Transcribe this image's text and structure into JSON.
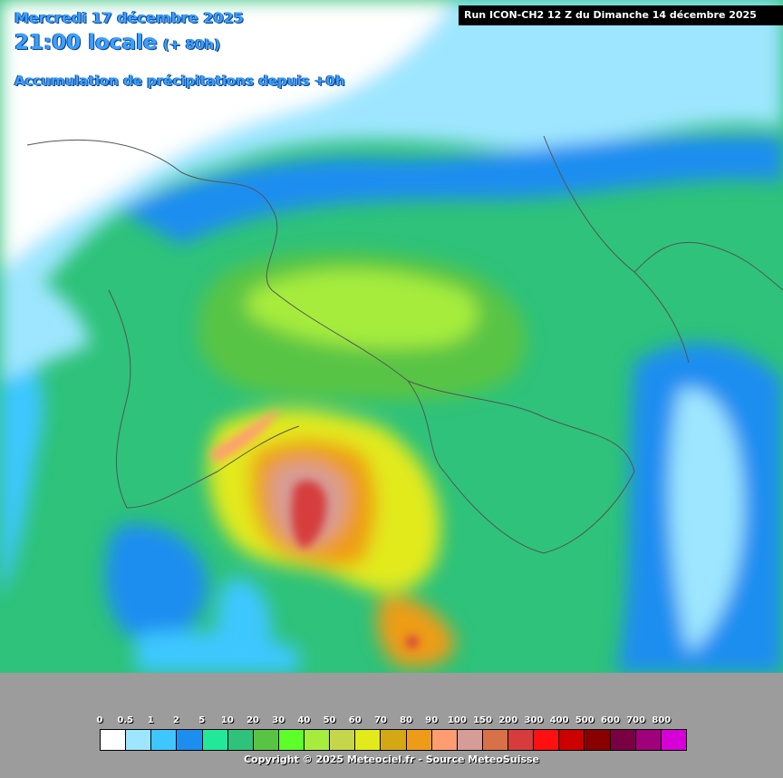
{
  "header": {
    "date": "Mercredi 17 décembre 2025",
    "time": "21:00 locale",
    "offset": "(+ 80h)",
    "subtitle": "Accumulation de précipitations depuis +0h"
  },
  "run_banner": "Run ICON-CH2 12 Z du Dimanche 14 décembre 2025",
  "legend": {
    "ticks": [
      "0",
      "0.5",
      "1",
      "2",
      "5",
      "10",
      "20",
      "30",
      "40",
      "50",
      "60",
      "70",
      "80",
      "90",
      "100",
      "150",
      "200",
      "300",
      "400",
      "500",
      "600",
      "700",
      "800"
    ],
    "colors": [
      "#ffffff",
      "#9ee6ff",
      "#3ec7ff",
      "#1c8ef0",
      "#22e89a",
      "#2ec27a",
      "#58c444",
      "#5cff28",
      "#a6ec3c",
      "#c6d64a",
      "#e2ea1c",
      "#d4a814",
      "#ee9c18",
      "#ff9c72",
      "#d69c98",
      "#d87048",
      "#d63c3c",
      "#ff1010",
      "#cc0000",
      "#8a0000",
      "#7a0044",
      "#a0007a",
      "#d600d6"
    ]
  },
  "copyright": "Copyright © 2025 Meteociel.fr - Source MeteoSuisse",
  "colors": {
    "title": "#3aa0ff",
    "sea_land_mask": "#9c9c9c",
    "border_lines": "#555555"
  }
}
